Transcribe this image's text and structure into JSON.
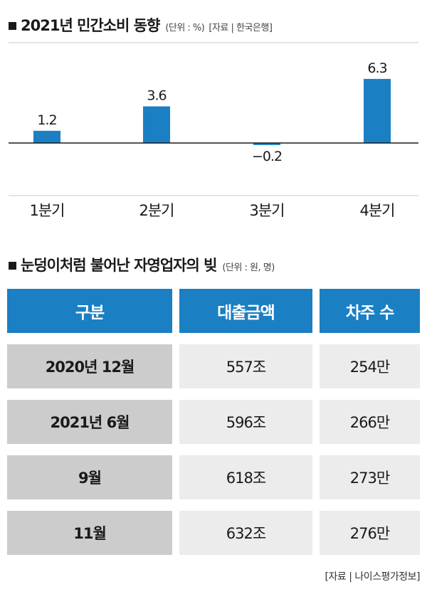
{
  "chart_section": {
    "title": "2021년 민간소비 동향",
    "unit": "(단위 : %)",
    "source": "[자료 | 한국은행]"
  },
  "chart_data": {
    "type": "bar",
    "title": "2021년 민간소비 동향",
    "categories": [
      "1분기",
      "2분기",
      "3분기",
      "4분기"
    ],
    "values": [
      1.2,
      3.6,
      -0.2,
      6.3
    ],
    "value_labels": [
      "1.2",
      "3.6",
      "−0.2",
      "6.3"
    ],
    "unit": "%",
    "bar_color": "#1b7fc4",
    "grid": false
  },
  "table_section": {
    "title": "눈덩이처럼 불어난 자영업자의 빚",
    "unit": "(단위 : 원, 명)",
    "source": "[자료 | 나이스평가정보]",
    "header_color": "#1b7fc4",
    "headers": [
      "구분",
      "대출금액",
      "차주 수"
    ],
    "rows": [
      [
        "2020년 12월",
        "557조",
        "254만"
      ],
      [
        "2021년 6월",
        "596조",
        "266만"
      ],
      [
        "9월",
        "618조",
        "273만"
      ],
      [
        "11월",
        "632조",
        "276만"
      ]
    ]
  }
}
